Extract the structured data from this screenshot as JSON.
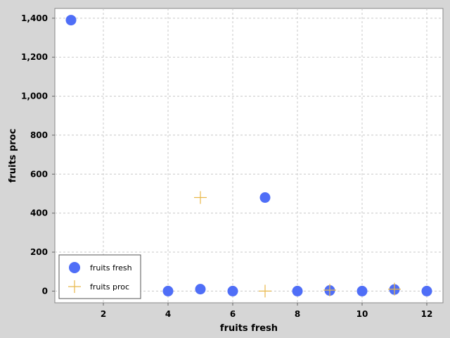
{
  "chart_data": {
    "type": "scatter",
    "xlabel": "fruits fresh",
    "ylabel": "fruits proc",
    "xlim": [
      0.5,
      12.5
    ],
    "ylim": [
      -60,
      1450
    ],
    "xticks": [
      2,
      4,
      6,
      8,
      10,
      12
    ],
    "xtick_labels": [
      "2",
      "4",
      "6",
      "8",
      "10",
      "12"
    ],
    "yticks": [
      0,
      200,
      400,
      600,
      800,
      1000,
      1200,
      1400
    ],
    "ytick_labels": [
      "0",
      "200",
      "400",
      "600",
      "800",
      "1,000",
      "1,200",
      "1,400"
    ],
    "grid": true,
    "legend_position": "bottom-left",
    "series": [
      {
        "name": "fruits fresh",
        "marker": "circle",
        "color": "#4f6ef7",
        "points": [
          [
            1,
            1390
          ],
          [
            4,
            0
          ],
          [
            5,
            10
          ],
          [
            6,
            0
          ],
          [
            7,
            480
          ],
          [
            8,
            0
          ],
          [
            9,
            3
          ],
          [
            10,
            0
          ],
          [
            11,
            8
          ],
          [
            12,
            0
          ]
        ]
      },
      {
        "name": "fruits proc",
        "marker": "cross",
        "color": "#e8b84a",
        "points": [
          [
            5,
            480
          ],
          [
            7,
            0
          ],
          [
            9,
            5
          ],
          [
            11,
            10
          ]
        ]
      }
    ]
  }
}
